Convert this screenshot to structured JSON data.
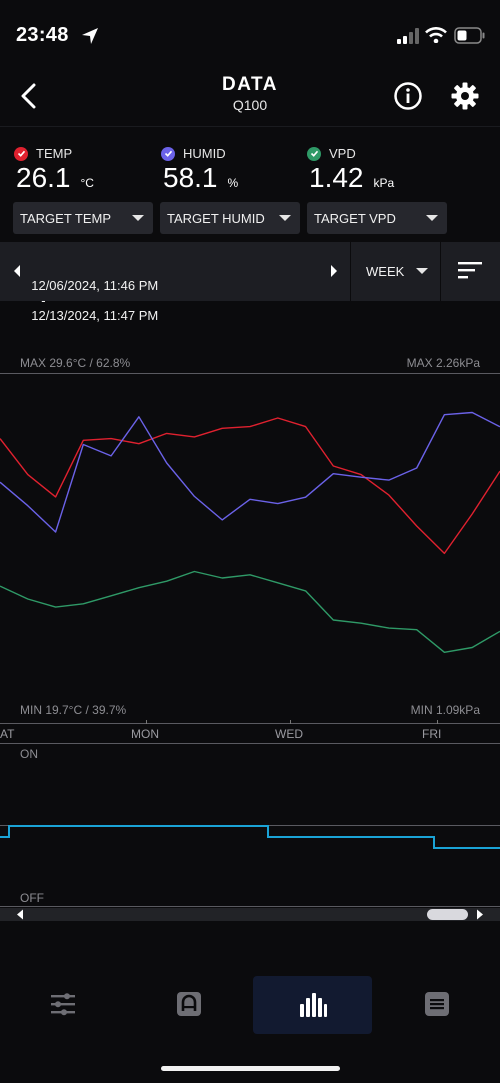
{
  "status_bar": {
    "time": "23:48"
  },
  "header": {
    "title": "DATA",
    "subtitle": "Q100"
  },
  "readings": [
    {
      "label": "TEMP",
      "value": "26.1",
      "unit": "°C",
      "color": "#e0212f"
    },
    {
      "label": "HUMID",
      "value": "58.1",
      "unit": "%",
      "color": "#6b62e8"
    },
    {
      "label": "VPD",
      "value": "1.42",
      "unit": "kPa",
      "color": "#2f9a67"
    }
  ],
  "targets": [
    "TARGET TEMP",
    "TARGET HUMID",
    "TARGET VPD"
  ],
  "date_range": {
    "start": "12/06/2024, 11:46 PM",
    "separator": "-",
    "end": "12/13/2024, 11:47 PM"
  },
  "period": "WEEK",
  "chart": {
    "max_left": "MAX 29.6°C / 62.8%",
    "max_right": "MAX 2.26kPa",
    "min_left": "MIN 19.7°C / 39.7%",
    "min_right": "MIN 1.09kPa",
    "days": [
      "AT",
      "MON",
      "WED",
      "FRI"
    ]
  },
  "device_chart": {
    "on_label": "ON",
    "off_label": "OFF",
    "color": "#1aa3d6"
  },
  "nav": [
    "controls-icon",
    "device-icon",
    "data-chart-icon",
    "log-list-icon"
  ],
  "chart_data": {
    "type": "line",
    "x_ticks": [
      "AT",
      "MON",
      "WED",
      "FRI"
    ],
    "series": [
      {
        "name": "TEMP",
        "unit": "°C",
        "color": "#e0212f",
        "values": [
          27.9,
          25.8,
          24.5,
          27.8,
          27.9,
          27.6,
          28.2,
          28.0,
          28.5,
          28.6,
          29.1,
          28.6,
          26.3,
          25.8,
          24.6,
          22.8,
          21.2,
          23.5,
          26.0
        ]
      },
      {
        "name": "HUMID",
        "unit": "%",
        "color": "#6b62e8",
        "values": [
          51.5,
          48.2,
          44.5,
          56.8,
          55.2,
          60.7,
          54.2,
          49.5,
          46.2,
          49.1,
          48.5,
          49.4,
          52.7,
          52.2,
          51.8,
          53.5,
          61.0,
          61.3,
          59.3
        ]
      },
      {
        "name": "VPD",
        "unit": "kPa",
        "color": "#2f9a67",
        "values": [
          1.73,
          1.65,
          1.6,
          1.62,
          1.67,
          1.72,
          1.76,
          1.82,
          1.78,
          1.8,
          1.75,
          1.7,
          1.52,
          1.5,
          1.47,
          1.46,
          1.32,
          1.35,
          1.45
        ]
      }
    ]
  }
}
